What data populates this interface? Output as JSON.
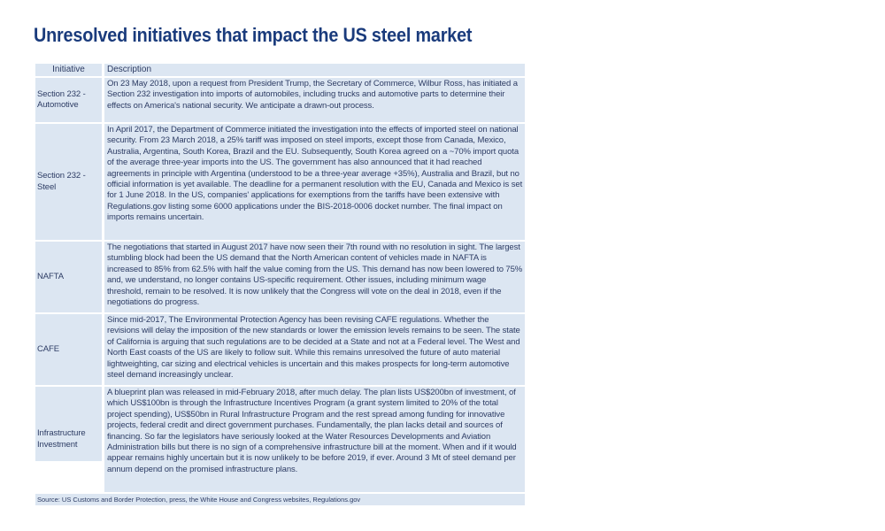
{
  "title": "Unresolved initiatives that impact the US steel market",
  "colors": {
    "title_text": "#1a3b7c",
    "body_text": "#2d3c64",
    "cell_background": "#dce6f2",
    "separator": "#ffffff",
    "page_background": "#ffffff"
  },
  "table": {
    "headers": [
      "Initiative",
      "Description"
    ],
    "rows": [
      {
        "initiative": "Section 232 - Automotive",
        "description": "On 23 May 2018, upon a request from President Trump, the Secretary of Commerce, Wilbur Ross, has initiated a Section 232 investigation into imports of automobiles, including trucks and automotive parts to determine their effects on America's national security. We anticipate a drawn-out process."
      },
      {
        "initiative": "Section 232 - Steel",
        "description": "In April 2017, the Department of Commerce initiated the investigation into the effects of imported steel on national security. From 23 March 2018, a 25% tariff was imposed on steel imports, except those from Canada, Mexico, Australia, Argentina, South Korea, Brazil and the EU. Subsequently, South Korea agreed on a ~70% import quota of the average three-year imports into the US. The government has also announced that it had reached agreements in principle with Argentina (understood to be a three-year average +35%), Australia and Brazil, but no official information is yet available. The deadline for a permanent resolution with the EU, Canada and Mexico is set for 1 June 2018. In the US, companies' applications for exemptions from the tariffs have been extensive with Regulations.gov listing some 6000 applications under the BIS-2018-0006 docket number. The final impact on imports remains uncertain."
      },
      {
        "initiative": "NAFTA",
        "description": "The negotiations that started in August 2017 have now seen their 7th round with no resolution in sight. The largest stumbling block had been the US demand that the North American content of vehicles made in NAFTA is increased to 85% from 62.5% with half the value coming from the US. This demand has now been lowered to 75% and, we understand, no longer contains US-specific requirement. Other issues, including minimum wage threshold, remain to be resolved.  It is now unlikely that the Congress will vote on the deal in 2018, even if the negotiations do progress."
      },
      {
        "initiative": "CAFE",
        "description": "Since mid-2017, The Environmental Protection Agency has been revising CAFE regulations. Whether the revisions will delay the imposition of the new standards or lower the emission levels remains to be seen. The state of California is arguing that such regulations are to be decided at a State and not at a Federal level. The West and North East coasts of the US are likely to follow suit. While this remains unresolved the future of auto material lightweighting, car sizing and electrical vehicles is uncertain and this makes prospects for long-term automotive steel demand increasingly unclear."
      },
      {
        "initiative": "Infrastructure Investment",
        "description": "A blueprint plan was released in mid-February 2018, after much delay. The plan lists US$200bn of investment, of which US$100bn is through the Infrastructure Incentives Program (a grant system limited to 20% of the total project spending), US$50bn in Rural Infrastructure Program and the rest spread among funding for innovative projects, federal credit and direct government purchases. Fundamentally, the plan lacks detail and sources of financing. So far the legislators have seriously looked at the Water Resources Developments and Aviation Administration bills but there is no sign of a comprehensive infrastructure bill at the moment. When and if it would appear remains highly uncertain but it is now unlikely to be before 2019, if ever. Around 3 Mt of steel demand per annum depend on the promised infrastructure plans."
      }
    ]
  },
  "source": "Source: US Customs and Border Protection, press, the White House and Congress websites, Regulations.gov"
}
